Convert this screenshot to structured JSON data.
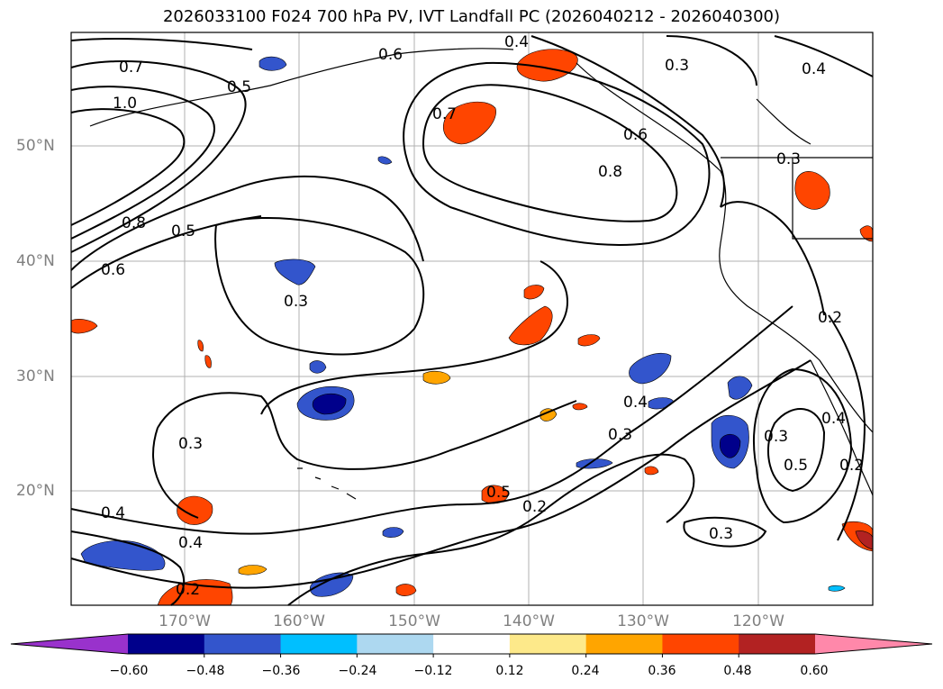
{
  "title": "2026033100 F024 700 hPa PV, IVT Landfall PC (2026040212 - 2026040300)",
  "lat_labels": [
    "50°N",
    "40°N",
    "30°N",
    "20°N"
  ],
  "lon_labels": [
    "170°W",
    "160°W",
    "150°W",
    "140°W",
    "130°W",
    "120°W"
  ],
  "colorbar": {
    "ticks": [
      "−0.60",
      "−0.48",
      "−0.36",
      "−0.24",
      "−0.12",
      "0.12",
      "0.24",
      "0.36",
      "0.48",
      "0.60"
    ],
    "colors": [
      "#9932cc",
      "#00008b",
      "#3355cc",
      "#00bfff",
      "#add8f0",
      "#ffffff",
      "#fde98a",
      "#ffa500",
      "#ff4500",
      "#b22222",
      "#ff88aa"
    ]
  },
  "contour_labels": [
    "0.7",
    "1.0",
    "0.5",
    "0.8",
    "0.5",
    "0.6",
    "0.4",
    "0.6",
    "0.3",
    "0.4",
    "0.7",
    "0.6",
    "0.8",
    "0.3",
    "0.3",
    "0.4",
    "0.3",
    "0.2",
    "0.4",
    "0.3",
    "0.4",
    "0.2",
    "0.5",
    "0.2",
    "0.3",
    "0.4",
    "0.5",
    "0.3",
    "0.2"
  ]
}
